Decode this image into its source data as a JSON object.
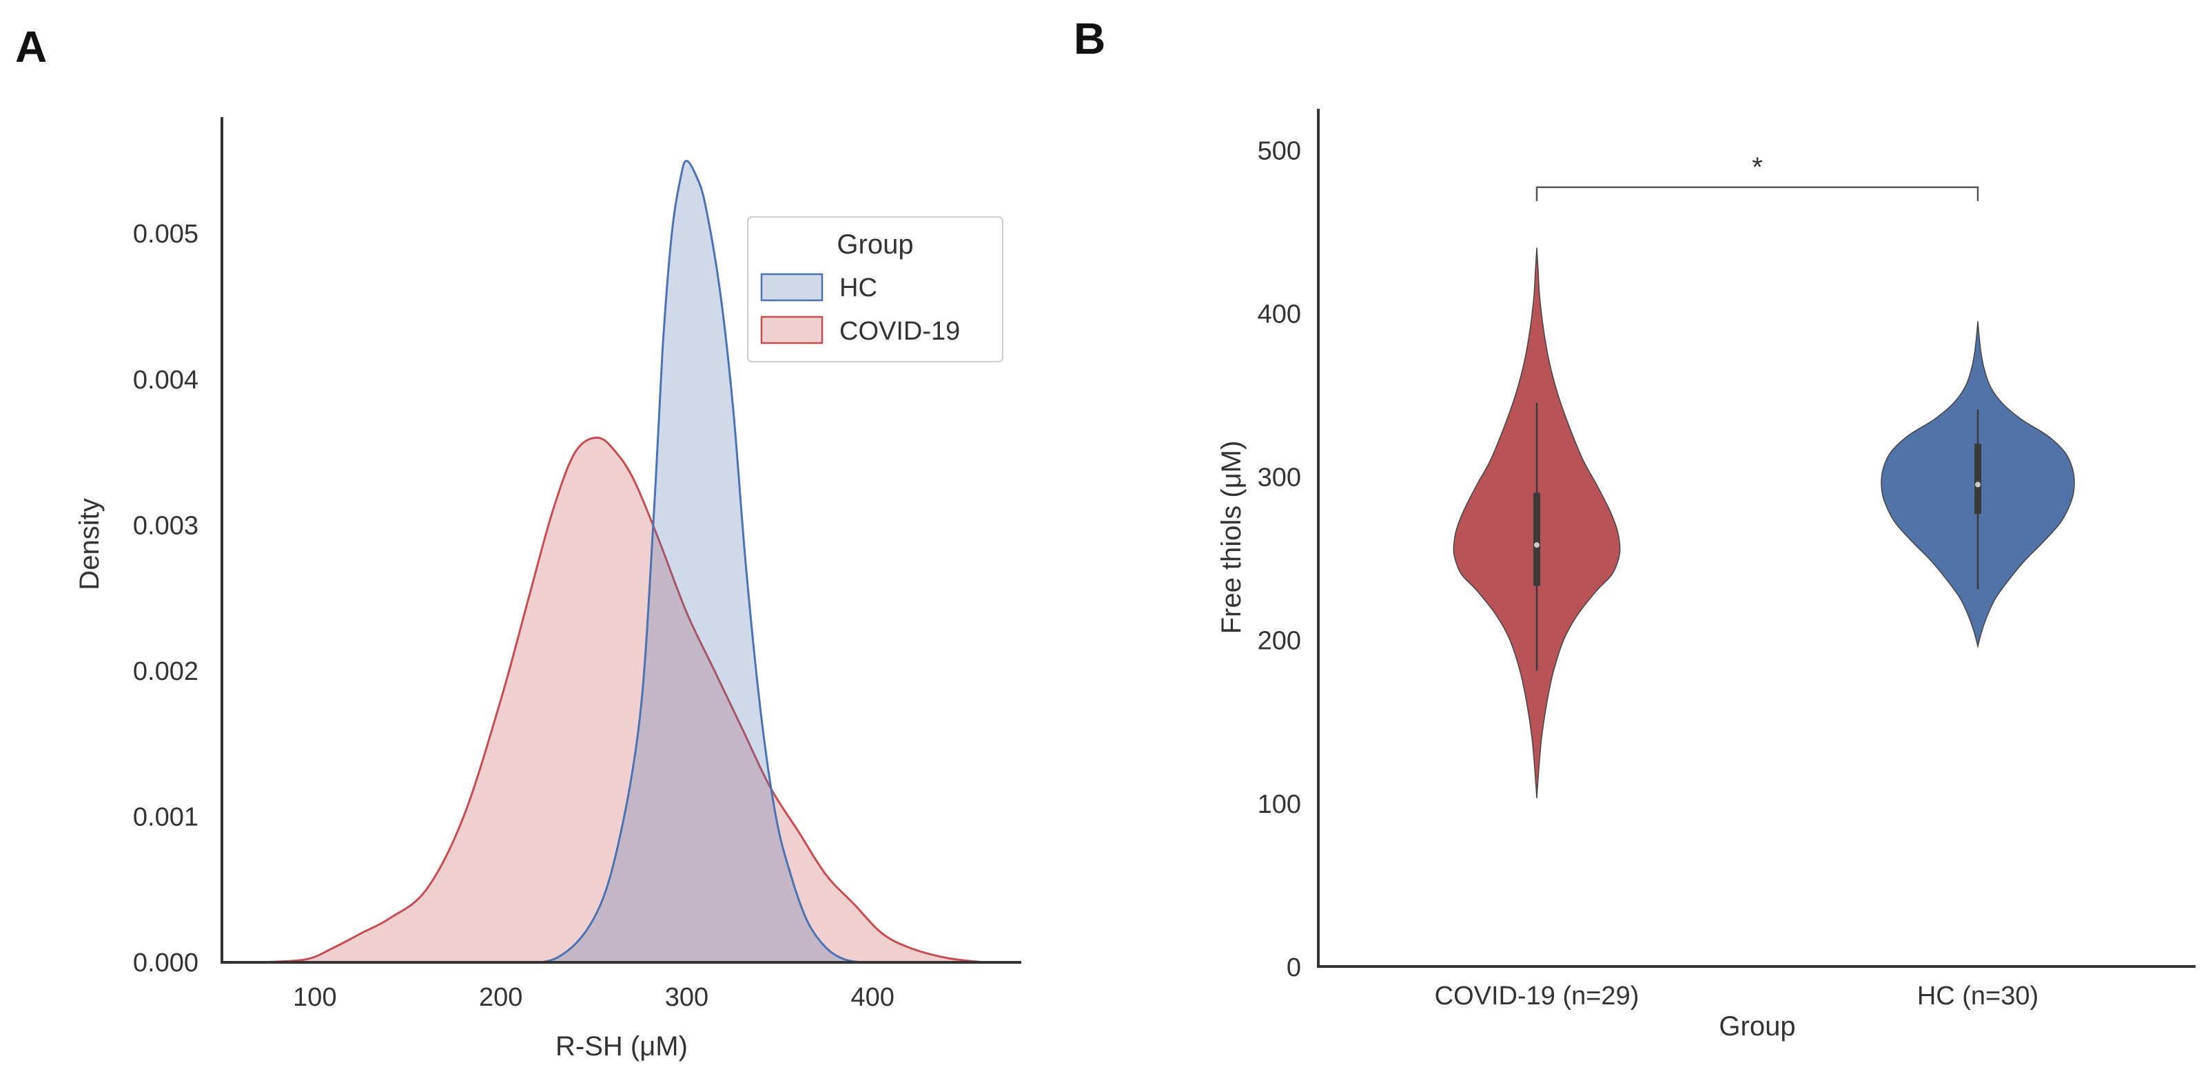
{
  "panels": {
    "A": {
      "label": "A"
    },
    "B": {
      "label": "B"
    }
  },
  "chart_data": [
    {
      "type": "area",
      "subtype": "kde",
      "title": "",
      "xlabel": "R-SH (μM)",
      "ylabel": "Density",
      "xlim": [
        50,
        480
      ],
      "ylim": [
        0,
        0.0058
      ],
      "x_ticks": [
        100,
        200,
        300,
        400
      ],
      "y_ticks": [
        0.0,
        0.001,
        0.002,
        0.003,
        0.004,
        0.005
      ],
      "y_tick_labels": [
        "0.000",
        "0.001",
        "0.002",
        "0.003",
        "0.004",
        "0.005"
      ],
      "legend": {
        "title": "Group",
        "placement": "top-right"
      },
      "series": [
        {
          "name": "HC",
          "color": "#4c72b0",
          "points": [
            [
              205,
              0.0
            ],
            [
              230,
              3e-05
            ],
            [
              250,
              0.0003
            ],
            [
              263,
              0.0008
            ],
            [
              275,
              0.0017
            ],
            [
              282,
              0.003
            ],
            [
              287,
              0.0042
            ],
            [
              292,
              0.005
            ],
            [
              297,
              0.0054
            ],
            [
              300,
              0.0055
            ],
            [
              305,
              0.0054
            ],
            [
              310,
              0.0052
            ],
            [
              318,
              0.0046
            ],
            [
              325,
              0.0038
            ],
            [
              332,
              0.0027
            ],
            [
              340,
              0.0017
            ],
            [
              348,
              0.001
            ],
            [
              356,
              0.0006
            ],
            [
              365,
              0.00028
            ],
            [
              375,
              0.0001
            ],
            [
              385,
              2e-05
            ],
            [
              395,
              0.0
            ]
          ]
        },
        {
          "name": "COVID-19",
          "color": "#c44e52",
          "points": [
            [
              70,
              0.0
            ],
            [
              95,
              2e-05
            ],
            [
              110,
              0.0001
            ],
            [
              125,
              0.0002
            ],
            [
              140,
              0.0003
            ],
            [
              160,
              0.0005
            ],
            [
              180,
              0.001
            ],
            [
              200,
              0.0018
            ],
            [
              215,
              0.0025
            ],
            [
              228,
              0.0031
            ],
            [
              240,
              0.0035
            ],
            [
              252,
              0.0036
            ],
            [
              262,
              0.0035
            ],
            [
              272,
              0.0033
            ],
            [
              285,
              0.0029
            ],
            [
              300,
              0.0024
            ],
            [
              315,
              0.002
            ],
            [
              330,
              0.0016
            ],
            [
              345,
              0.0012
            ],
            [
              360,
              0.0009
            ],
            [
              375,
              0.0006
            ],
            [
              390,
              0.0004
            ],
            [
              405,
              0.0002
            ],
            [
              420,
              0.0001
            ],
            [
              440,
              3e-05
            ],
            [
              460,
              0.0
            ]
          ]
        }
      ]
    },
    {
      "type": "violin",
      "title": "",
      "xlabel": "Group",
      "ylabel": "Free thiols (μM)",
      "ylim": [
        0,
        525
      ],
      "y_ticks": [
        0,
        100,
        200,
        300,
        400,
        500
      ],
      "y_tick_labels": [
        "0",
        "100",
        "200",
        "300",
        "400",
        "500"
      ],
      "categories": [
        "COVID-19 (n=29)",
        "HC (n=30)"
      ],
      "significance": {
        "label": "*",
        "bracket_y": 477,
        "between": [
          0,
          1
        ]
      },
      "series": [
        {
          "name": "COVID-19 (n=29)",
          "color": "#b85457",
          "min": 103,
          "max": 440,
          "whisker_low": 181,
          "whisker_high": 345,
          "q1": 233,
          "q3": 290,
          "median": 258,
          "profile": [
            [
              103,
              0.0
            ],
            [
              120,
              0.02
            ],
            [
              140,
              0.05
            ],
            [
              160,
              0.1
            ],
            [
              180,
              0.17
            ],
            [
              200,
              0.28
            ],
            [
              215,
              0.42
            ],
            [
              230,
              0.62
            ],
            [
              240,
              0.78
            ],
            [
              250,
              0.85
            ],
            [
              258,
              0.86
            ],
            [
              268,
              0.83
            ],
            [
              280,
              0.75
            ],
            [
              295,
              0.62
            ],
            [
              310,
              0.48
            ],
            [
              330,
              0.34
            ],
            [
              350,
              0.22
            ],
            [
              370,
              0.13
            ],
            [
              390,
              0.07
            ],
            [
              410,
              0.03
            ],
            [
              425,
              0.015
            ],
            [
              440,
              0.0
            ]
          ]
        },
        {
          "name": "HC (n=30)",
          "color": "#5173a8",
          "min": 196,
          "max": 395,
          "whisker_low": 231,
          "whisker_high": 341,
          "q1": 277,
          "q3": 320,
          "median": 295,
          "profile": [
            [
              196,
              0.0
            ],
            [
              205,
              0.04
            ],
            [
              215,
              0.1
            ],
            [
              225,
              0.18
            ],
            [
              235,
              0.3
            ],
            [
              248,
              0.48
            ],
            [
              260,
              0.68
            ],
            [
              272,
              0.86
            ],
            [
              285,
              0.97
            ],
            [
              295,
              1.0
            ],
            [
              305,
              0.98
            ],
            [
              315,
              0.9
            ],
            [
              325,
              0.72
            ],
            [
              335,
              0.45
            ],
            [
              345,
              0.25
            ],
            [
              355,
              0.13
            ],
            [
              365,
              0.07
            ],
            [
              375,
              0.035
            ],
            [
              385,
              0.015
            ],
            [
              395,
              0.0
            ]
          ]
        }
      ]
    }
  ]
}
